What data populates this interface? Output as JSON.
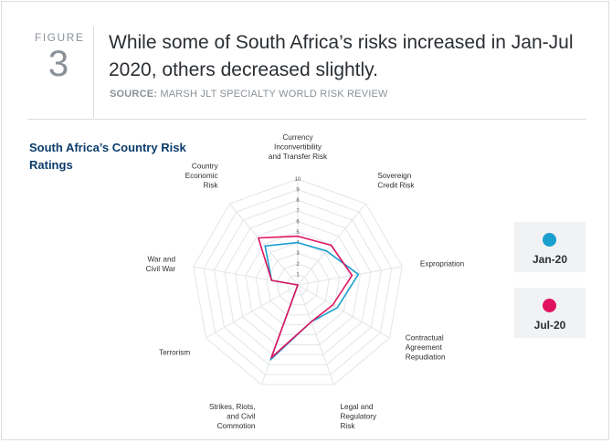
{
  "header": {
    "figure_label": "FIGURE",
    "figure_number": "3",
    "headline": "While some of South Africa’s risks increased in Jan-Jul 2020, others decreased slightly.",
    "source_label": "SOURCE:",
    "source_text": "MARSH JLT SPECIALTY WORLD RISK REVIEW"
  },
  "chart_data": {
    "type": "radar",
    "title": "South Africa’s Country Risk Ratings",
    "axes": [
      [
        "Currency",
        "Inconvertibility",
        "and Transfer Risk"
      ],
      [
        "Sovereign",
        "Credit Risk"
      ],
      [
        "Expropriation"
      ],
      [
        "Contractual",
        "Agreement",
        "Repudiation"
      ],
      [
        "Legal and",
        "Regulatory",
        "Risk"
      ],
      [
        "Strikes, Riots,",
        "and Civil",
        "Commotion"
      ],
      [
        "Terrorism"
      ],
      [
        "War and",
        "Civil War"
      ],
      [
        "Country",
        "Economic",
        "Risk"
      ]
    ],
    "rlim": [
      0,
      10
    ],
    "ticks": [
      "1",
      "2",
      "3",
      "4",
      "5",
      "6",
      "7",
      "8",
      "9",
      "10"
    ],
    "series": [
      {
        "name": "Jan-20",
        "color": "#1aa0cf",
        "values": [
          4,
          4.2,
          5.8,
          4.3,
          3.7,
          7.5,
          0,
          2.5,
          4.8
        ]
      },
      {
        "name": "Jul-20",
        "color": "#e0125f",
        "values": [
          4.6,
          4.9,
          5.2,
          3.8,
          3.7,
          7.3,
          0,
          2.5,
          5.8
        ]
      }
    ],
    "legend_position": "right"
  }
}
